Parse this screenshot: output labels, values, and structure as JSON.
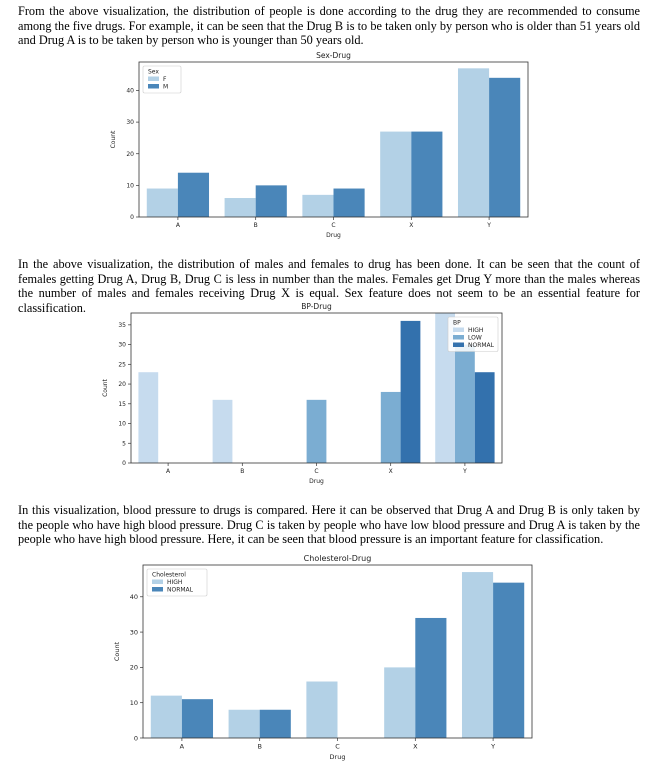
{
  "paragraphs": {
    "p1": "From the above visualization, the distribution of people is done according to the drug they are recommended to consume among the five drugs. For example, it can be seen that the Drug B is to be taken only by person who is older than 51 years old and Drug A is to be taken by person who is younger than 50 years old.",
    "p2": "In the above visualization, the distribution of males and females to drug has been done. It can be seen that the count of females getting Drug A, Drug B, Drug C is less in number than the males. Females get Drug Y more than the males whereas the number of males and females receiving Drug X is equal. Sex feature does not seem to be an essential feature for classification.",
    "p3": "In this visualization, blood pressure to drugs is compared. Here it can be observed that Drug A and Drug B is only taken by the people who have high blood pressure. Drug C is taken by people who have low blood pressure and Drug A is taken by the people who have high blood pressure. Here, it can be seen that blood pressure is an important feature for classification."
  },
  "chart_data": [
    {
      "type": "bar",
      "title": "Sex-Drug",
      "xlabel": "Drug",
      "ylabel": "Count",
      "categories": [
        "A",
        "B",
        "C",
        "X",
        "Y"
      ],
      "ylim": [
        0,
        49
      ],
      "yticks": [
        0,
        10,
        20,
        30,
        40
      ],
      "legend_title": "Sex",
      "legend_position": "top-left",
      "series": [
        {
          "name": "F",
          "color": "#b3d1e6",
          "values": [
            9,
            6,
            7,
            27,
            47
          ]
        },
        {
          "name": "M",
          "color": "#4a86b9",
          "values": [
            14,
            10,
            9,
            27,
            44
          ]
        }
      ]
    },
    {
      "type": "bar",
      "title": "BP-Drug",
      "xlabel": "Drug",
      "ylabel": "Count",
      "categories": [
        "A",
        "B",
        "C",
        "X",
        "Y"
      ],
      "ylim": [
        0,
        38
      ],
      "yticks": [
        0,
        5,
        10,
        15,
        20,
        25,
        30,
        35
      ],
      "legend_title": "BP",
      "legend_position": "top-right",
      "series": [
        {
          "name": "HIGH",
          "color": "#c6dbee",
          "values": [
            23,
            16,
            0,
            0,
            38
          ]
        },
        {
          "name": "LOW",
          "color": "#7badd2",
          "values": [
            0,
            0,
            16,
            18,
            30
          ]
        },
        {
          "name": "NORMAL",
          "color": "#3371ad",
          "values": [
            0,
            0,
            0,
            36,
            23
          ]
        }
      ]
    },
    {
      "type": "bar",
      "title": "Cholesterol-Drug",
      "xlabel": "Drug",
      "ylabel": "Count",
      "categories": [
        "A",
        "B",
        "C",
        "X",
        "Y"
      ],
      "ylim": [
        0,
        49
      ],
      "yticks": [
        0,
        10,
        20,
        30,
        40
      ],
      "legend_title": "Cholesterol",
      "legend_position": "top-left",
      "series": [
        {
          "name": "HIGH",
          "color": "#b3d1e6",
          "values": [
            12,
            8,
            16,
            20,
            47
          ]
        },
        {
          "name": "NORMAL",
          "color": "#4a86b9",
          "values": [
            11,
            8,
            0,
            34,
            44
          ]
        }
      ]
    }
  ]
}
